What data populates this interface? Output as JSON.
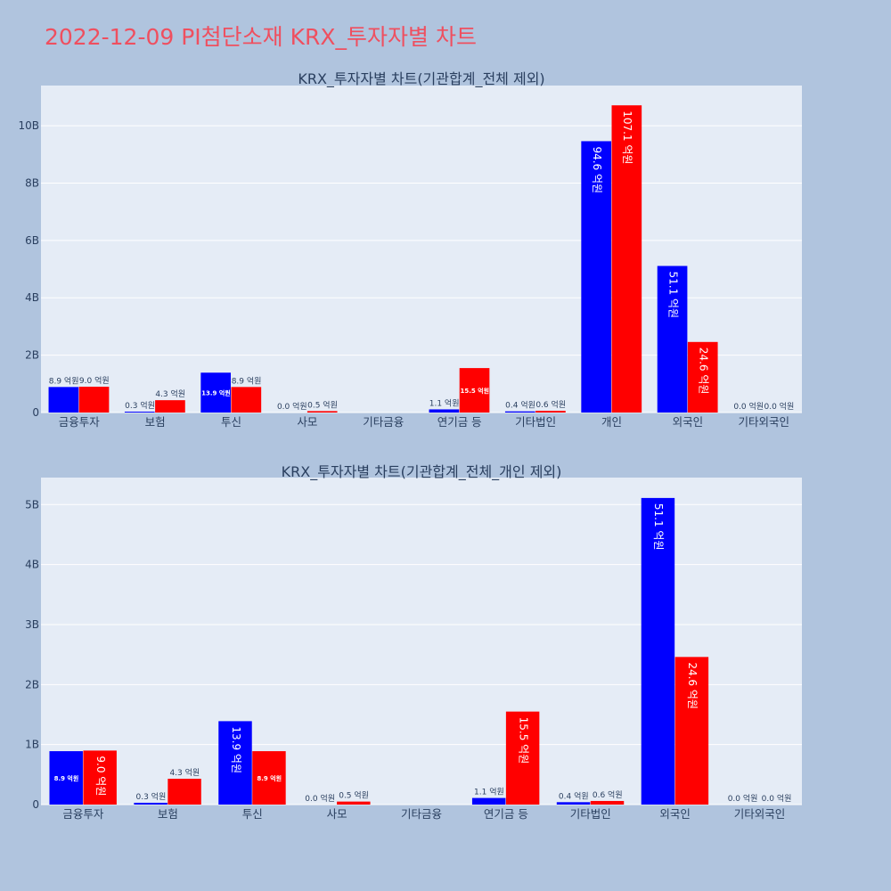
{
  "page": {
    "title": "2022-12-09 PI첨단소재 KRX_투자자별 차트"
  },
  "colors": {
    "page_bg": "#b0c4de",
    "plot_bg": "#e5ecf6",
    "title": "#ef4f5f",
    "buy_series": "#0000ff",
    "sell_series": "#ff0000",
    "text": "#2a3f5f"
  },
  "chart_data": [
    {
      "type": "bar",
      "title": "KRX_투자자별 차트(기관합계_전체 제외)",
      "categories": [
        "금융투자",
        "보험",
        "투신",
        "사모",
        "기타금융",
        "연기금 등",
        "기타법인",
        "개인",
        "외국인",
        "기타외국인"
      ],
      "series": [
        {
          "name": "blue",
          "color": "#0000ff",
          "values": [
            890000000,
            30000000,
            1390000000,
            0,
            null,
            110000000,
            40000000,
            9460000000,
            5110000000,
            0
          ],
          "labels": [
            "8.9 억원",
            "0.3 억원",
            "13.9 억원",
            "0.0 억원",
            null,
            "1.1 억원",
            "0.4 억원",
            "94.6 억원",
            "51.1 억원",
            "0.0 억원"
          ]
        },
        {
          "name": "red",
          "color": "#ff0000",
          "values": [
            900000000,
            430000000,
            890000000,
            50000000,
            null,
            1550000000,
            60000000,
            10710000000,
            2460000000,
            0
          ],
          "labels": [
            "9.0 억원",
            "4.3 억원",
            "8.9 억원",
            "0.5 억원",
            null,
            "15.5 억원",
            "0.6 억원",
            "107.1 억원",
            "24.6 억원",
            "0.0 억원"
          ]
        }
      ],
      "ylim": [
        0,
        11400000000
      ],
      "yticks": [
        0,
        2000000000,
        4000000000,
        6000000000,
        8000000000,
        10000000000
      ],
      "ytick_labels": [
        "0",
        "2B",
        "4B",
        "6B",
        "8B",
        "10B"
      ],
      "grid": true
    },
    {
      "type": "bar",
      "title": "KRX_투자자별 차트(기관합계_전체_개인 제외)",
      "categories": [
        "금융투자",
        "보험",
        "투신",
        "사모",
        "기타금융",
        "연기금 등",
        "기타법인",
        "외국인",
        "기타외국인"
      ],
      "series": [
        {
          "name": "blue",
          "color": "#0000ff",
          "values": [
            890000000,
            30000000,
            1390000000,
            0,
            null,
            110000000,
            40000000,
            5110000000,
            0
          ],
          "labels": [
            "8.9 억원",
            "0.3 억원",
            "13.9 억원",
            "0.0 억원",
            null,
            "1.1 억원",
            "0.4 억원",
            "51.1 억원",
            "0.0 억원"
          ]
        },
        {
          "name": "red",
          "color": "#ff0000",
          "values": [
            900000000,
            430000000,
            890000000,
            50000000,
            null,
            1550000000,
            60000000,
            2460000000,
            0
          ],
          "labels": [
            "9.0 억원",
            "4.3 억원",
            "8.9 억원",
            "0.5 억원",
            null,
            "15.5 억원",
            "0.6 억원",
            "24.6 억원",
            "0.0 억원"
          ]
        }
      ],
      "ylim": [
        0,
        5450000000
      ],
      "yticks": [
        0,
        1000000000,
        2000000000,
        3000000000,
        4000000000,
        5000000000
      ],
      "ytick_labels": [
        "0",
        "1B",
        "2B",
        "3B",
        "4B",
        "5B"
      ],
      "grid": true
    }
  ]
}
